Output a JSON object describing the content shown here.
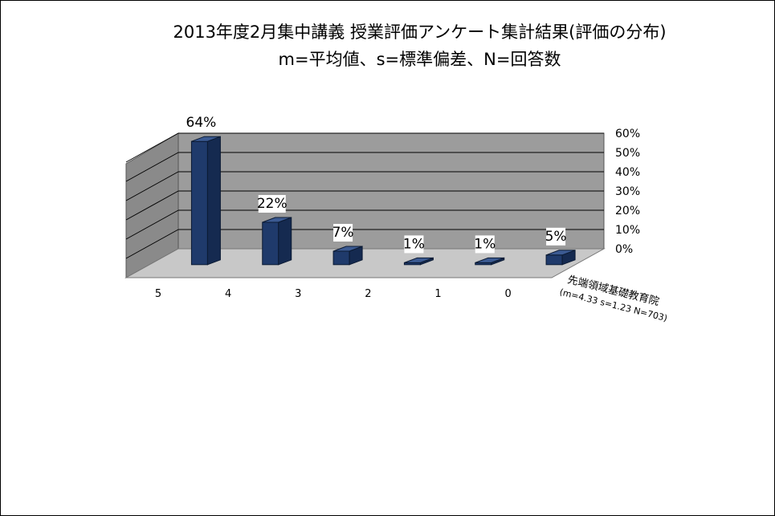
{
  "chart_data": {
    "type": "bar",
    "title": "2013年度2月集中講義  授業評価アンケート集計結果(評価の分布)",
    "subtitle": "m=平均値、s=標準偏差、N=回答数",
    "categories": [
      "5",
      "4",
      "3",
      "2",
      "1",
      "0"
    ],
    "series": [
      {
        "name": "先端領域基礎教育院",
        "stats": "(m=4.33 s=1.23 N=703)",
        "values": [
          64,
          22,
          7,
          1,
          1,
          5
        ],
        "labels": [
          "64%",
          "22%",
          "7%",
          "1%",
          "1%",
          "5%"
        ],
        "color": "#1f3a6b"
      }
    ],
    "ylim": [
      0,
      60
    ],
    "yticks": [
      "0%",
      "10%",
      "20%",
      "30%",
      "40%",
      "50%",
      "60%"
    ],
    "grid": true,
    "colors": {
      "back_wall": "#9c9c9c",
      "side_wall": "#8a8a8a",
      "floor": "#c8c8c8",
      "bar_front": "#1f3a6b",
      "bar_side": "#152a50",
      "bar_top": "#3b5a92"
    }
  }
}
